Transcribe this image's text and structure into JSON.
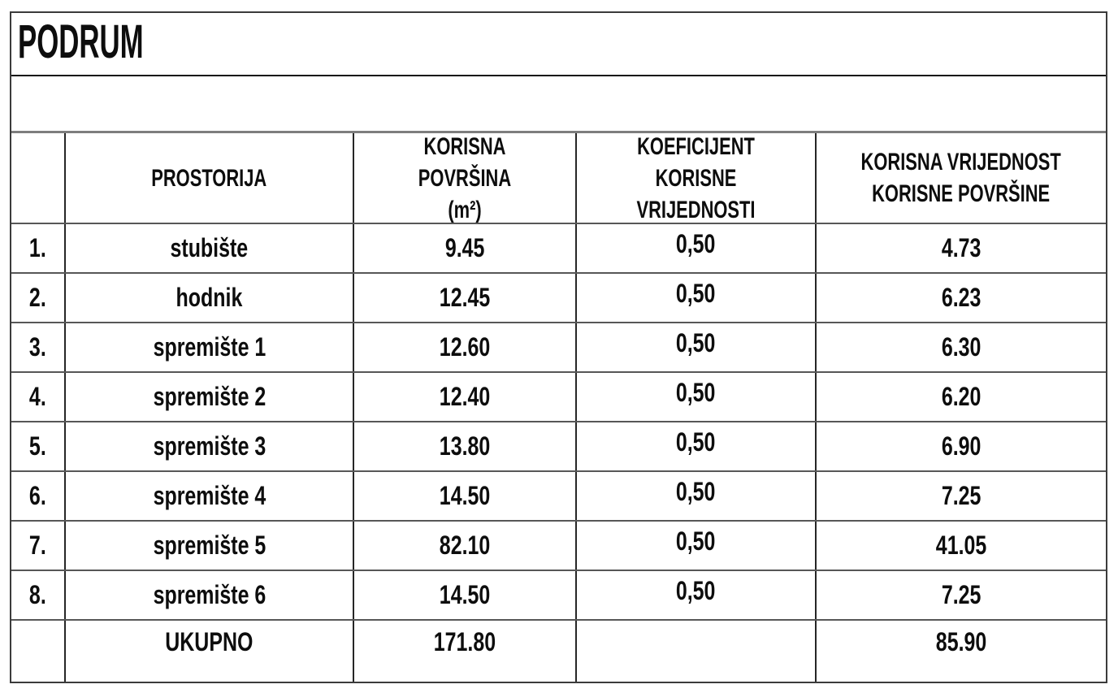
{
  "title": "PODRUM",
  "table": {
    "headers": {
      "num": "",
      "room": "PROSTORIJA",
      "area": "KORISNA POVRŠINA\n(m²)",
      "coef": "KOEFICIJENT KORISNE\nVRIJEDNOSTI",
      "value": "KORISNA VRIJEDNOST\nKORISNE POVRŠINE"
    },
    "rows": [
      {
        "num": "1.",
        "room": "stubište",
        "area": "9.45",
        "coef": "0,50",
        "value": "4.73"
      },
      {
        "num": "2.",
        "room": "hodnik",
        "area": "12.45",
        "coef": "0,50",
        "value": "6.23"
      },
      {
        "num": "3.",
        "room": "spremište 1",
        "area": "12.60",
        "coef": "0,50",
        "value": "6.30"
      },
      {
        "num": "4.",
        "room": "spremište 2",
        "area": "12.40",
        "coef": "0,50",
        "value": "6.20"
      },
      {
        "num": "5.",
        "room": "spremište 3",
        "area": "13.80",
        "coef": "0,50",
        "value": "6.90"
      },
      {
        "num": "6.",
        "room": "spremište 4",
        "area": "14.50",
        "coef": "0,50",
        "value": "7.25"
      },
      {
        "num": "7.",
        "room": "spremište 5",
        "area": "82.10",
        "coef": "0,50",
        "value": "41.05"
      },
      {
        "num": "8.",
        "room": "spremište 6",
        "area": "14.50",
        "coef": "0,50",
        "value": "7.25"
      }
    ],
    "total": {
      "num": "",
      "label": "UKUPNO",
      "area": "171.80",
      "coef": "",
      "value": "85.90"
    }
  },
  "colors": {
    "background": "#ffffff",
    "text": "#0d0d0d",
    "border_dark": "#262626",
    "border_gray": "#575757"
  }
}
